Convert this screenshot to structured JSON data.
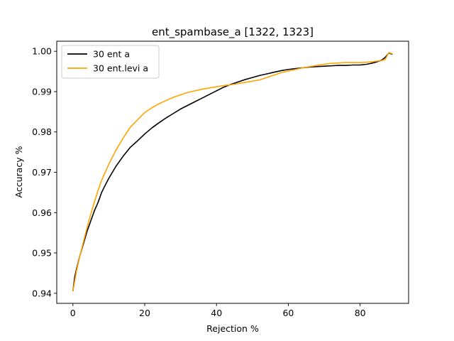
{
  "chart_data": {
    "type": "line",
    "title": "ent_spambase_a  [1322, 1323]",
    "xlabel": "Rejection %",
    "ylabel": "Accuracy %",
    "xlim": [
      -4.5,
      93.5
    ],
    "ylim": [
      0.9375,
      1.0025
    ],
    "xticks": [
      0,
      20,
      40,
      60,
      80
    ],
    "yticks": [
      0.94,
      0.95,
      0.96,
      0.97,
      0.98,
      0.99,
      1.0
    ],
    "ytick_labels": [
      "0.94",
      "0.95",
      "0.96",
      "0.97",
      "0.98",
      "0.99",
      "1.00"
    ],
    "grid": false,
    "legend_position": "top-left",
    "series": [
      {
        "name": "30 ent a",
        "color": "#000000",
        "x": [
          0,
          0.5,
          1,
          2,
          3,
          4,
          5,
          6,
          7,
          8,
          9,
          10,
          12,
          14,
          16,
          18,
          20,
          22,
          24,
          26,
          28,
          30,
          32,
          34,
          36,
          38,
          40,
          42,
          44,
          46,
          48,
          50,
          52,
          54,
          56,
          58,
          60,
          62,
          64,
          66,
          68,
          70,
          72,
          74,
          76,
          78,
          80,
          82,
          84,
          86,
          87,
          88,
          88.5,
          89
        ],
        "y": [
          0.9405,
          0.944,
          0.946,
          0.9495,
          0.9525,
          0.9555,
          0.958,
          0.9605,
          0.9625,
          0.965,
          0.9668,
          0.9685,
          0.9715,
          0.974,
          0.9762,
          0.9778,
          0.9795,
          0.981,
          0.9823,
          0.9835,
          0.9846,
          0.9857,
          0.9866,
          0.9875,
          0.9884,
          0.9893,
          0.9902,
          0.9911,
          0.9918,
          0.9924,
          0.993,
          0.9935,
          0.994,
          0.9944,
          0.9948,
          0.9952,
          0.9955,
          0.9957,
          0.9959,
          0.9961,
          0.9962,
          0.9963,
          0.9964,
          0.9965,
          0.9965,
          0.9966,
          0.9966,
          0.9968,
          0.9972,
          0.9978,
          0.9985,
          0.9996,
          0.9994,
          0.9993
        ]
      },
      {
        "name": "30 ent.levi a",
        "color": "#ffa500",
        "x": [
          0,
          0.5,
          1,
          2,
          3,
          4,
          5,
          6,
          7,
          8,
          9,
          10,
          12,
          14,
          16,
          18,
          20,
          22,
          24,
          26,
          28,
          30,
          32,
          34,
          36,
          38,
          40,
          42,
          44,
          46,
          48,
          50,
          52,
          54,
          56,
          58,
          60,
          62,
          64,
          66,
          68,
          70,
          72,
          74,
          76,
          78,
          80,
          82,
          84,
          86,
          87,
          88,
          88.5,
          89
        ],
        "y": [
          0.9405,
          0.943,
          0.9455,
          0.9495,
          0.953,
          0.9565,
          0.9597,
          0.9627,
          0.9655,
          0.968,
          0.97,
          0.972,
          0.9755,
          0.9785,
          0.9812,
          0.983,
          0.9848,
          0.986,
          0.987,
          0.9878,
          0.9886,
          0.9892,
          0.9898,
          0.9902,
          0.9906,
          0.9909,
          0.9912,
          0.9915,
          0.9917,
          0.992,
          0.9923,
          0.9926,
          0.9929,
          0.9935,
          0.9941,
          0.9947,
          0.9951,
          0.9955,
          0.9959,
          0.9962,
          0.9965,
          0.9968,
          0.997,
          0.9971,
          0.9972,
          0.9972,
          0.9972,
          0.9973,
          0.9975,
          0.9977,
          0.998,
          0.9997,
          0.9995,
          0.9994
        ]
      }
    ]
  }
}
